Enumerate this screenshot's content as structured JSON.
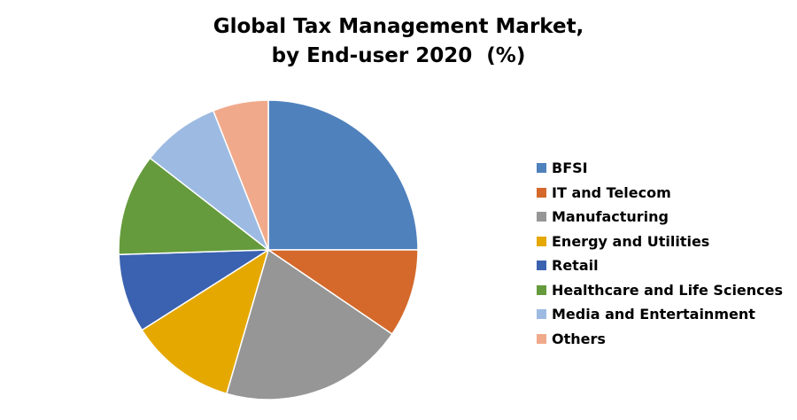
{
  "chart_data": {
    "type": "pie",
    "title_lines": [
      "Global Tax Management Market,",
      "by End-user 2020  (%)"
    ],
    "legend_position": "right",
    "start_angle_deg": 0,
    "direction": "clockwise",
    "slices": [
      {
        "label": "BFSI",
        "value": 25,
        "color": "#4F81BD"
      },
      {
        "label": "IT and Telecom",
        "value": 9.5,
        "color": "#D4692B"
      },
      {
        "label": "Manufacturing",
        "value": 20,
        "color": "#969696"
      },
      {
        "label": "Energy and Utilities",
        "value": 11.5,
        "color": "#E5A800"
      },
      {
        "label": "Retail",
        "value": 8.5,
        "color": "#3B62B0"
      },
      {
        "label": "Healthcare and Life Sciences",
        "value": 11,
        "color": "#659B3C"
      },
      {
        "label": "Media and Entertainment",
        "value": 8.5,
        "color": "#9DBBE2"
      },
      {
        "label": "Others",
        "value": 6,
        "color": "#F0AA8B"
      }
    ]
  }
}
